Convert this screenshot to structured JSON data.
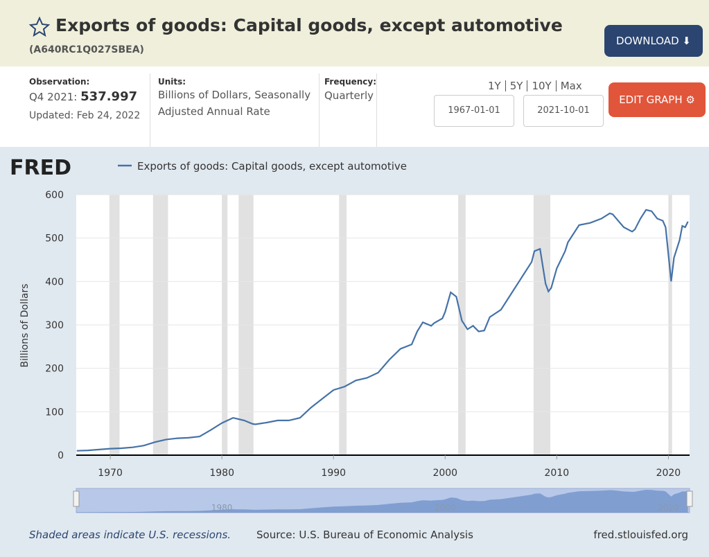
{
  "header": {
    "title": "Exports of goods: Capital goods, except automotive",
    "series_id": "(A640RC1Q027SBEA)",
    "download": "DOWNLOAD",
    "edit_graph": "EDIT GRAPH"
  },
  "info": {
    "observation_label": "Observation:",
    "observation_period": "Q4 2021:",
    "observation_value": "537.997",
    "updated": "Updated: Feb 24, 2022",
    "units_label": "Units:",
    "units": "Billions of Dollars, Seasonally Adjusted Annual Rate",
    "frequency_label": "Frequency:",
    "frequency": "Quarterly",
    "range_links": [
      "1Y",
      "5Y",
      "10Y",
      "Max"
    ],
    "start_date": "1967-01-01",
    "end_date": "2021-10-01"
  },
  "footer": {
    "note": "Shaded areas indicate U.S. recessions.",
    "source": "Source: U.S. Bureau of Economic Analysis",
    "site": "fred.stlouisfed.org"
  },
  "chart_data": {
    "type": "line",
    "logo": "FRED",
    "y_label": "Billions of Dollars",
    "x": [
      1967,
      1968,
      1969,
      1970,
      1971,
      1972,
      1973,
      1974,
      1975,
      1976,
      1977,
      1978,
      1979,
      1980,
      1981,
      1981.5,
      1982,
      1982.75,
      1983,
      1984,
      1985,
      1986,
      1987,
      1988,
      1989,
      1990,
      1991,
      1992,
      1993,
      1994,
      1995,
      1996,
      1997,
      1997.5,
      1998,
      1998.75,
      1999,
      1999.75,
      2000,
      2000.5,
      2001,
      2001.5,
      2002,
      2002.5,
      2003,
      2003.5,
      2004,
      2005,
      2006,
      2006.75,
      2007,
      2007.75,
      2008,
      2008.5,
      2009,
      2009.25,
      2009.5,
      2010,
      2010.75,
      2011,
      2011.75,
      2012,
      2013,
      2014,
      2014.75,
      2015,
      2016,
      2016.75,
      2017,
      2017.5,
      2018,
      2018.5,
      2019,
      2019.5,
      2019.75,
      2020.25,
      2020.5,
      2021,
      2021.25,
      2021.5,
      2021.75
    ],
    "series": [
      {
        "name": "Exports of goods: Capital goods, except automotive",
        "color": "#4572a7",
        "values": [
          10,
          11,
          13,
          15,
          16,
          18,
          22,
          30,
          36,
          39,
          40,
          43,
          58,
          74,
          86,
          83,
          80,
          72,
          71,
          75,
          80,
          80,
          86,
          110,
          130,
          150,
          158,
          172,
          178,
          190,
          220,
          245,
          255,
          285,
          306,
          298,
          304,
          315,
          330,
          375,
          365,
          310,
          290,
          298,
          285,
          287,
          318,
          335,
          375,
          405,
          415,
          445,
          470,
          475,
          395,
          377,
          385,
          430,
          470,
          490,
          520,
          530,
          535,
          545,
          557,
          555,
          525,
          515,
          520,
          545,
          565,
          562,
          545,
          540,
          525,
          400,
          455,
          495,
          528,
          525,
          537.997
        ]
      }
    ],
    "recessions": [
      [
        1969.92,
        1970.83
      ],
      [
        1973.83,
        1975.17
      ],
      [
        1980.0,
        1980.5
      ],
      [
        1981.5,
        1982.83
      ],
      [
        1990.5,
        1991.17
      ],
      [
        2001.17,
        2001.83
      ],
      [
        2007.92,
        2009.42
      ],
      [
        2020.0,
        2020.33
      ]
    ],
    "xlim": [
      1966.95,
      2021.9
    ],
    "ylim": [
      0,
      600
    ],
    "xticks": [
      1970,
      1980,
      1990,
      2000,
      2010,
      2020
    ],
    "yticks": [
      0,
      100,
      200,
      300,
      400,
      500,
      600
    ],
    "nav_xticks": [
      1980,
      2000,
      2020
    ],
    "grid": true
  }
}
